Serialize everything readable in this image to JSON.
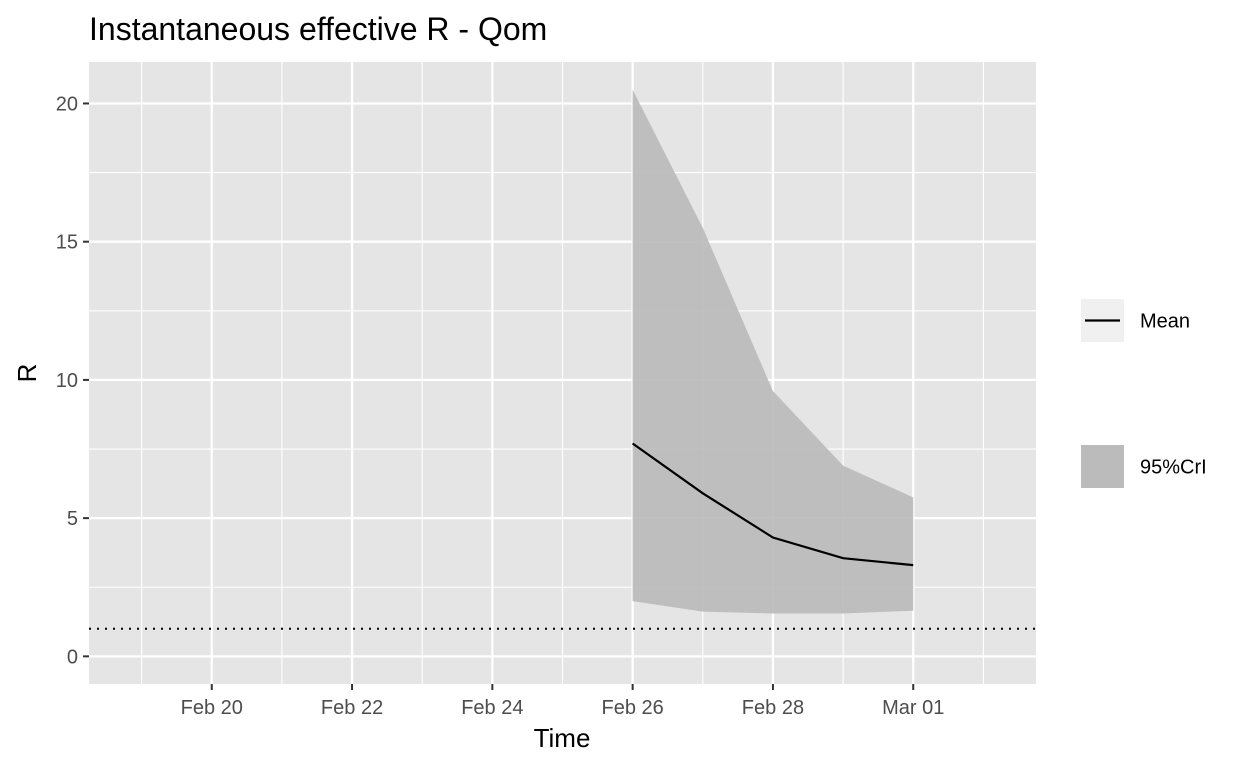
{
  "chart_data": {
    "type": "area",
    "title": "Instantaneous effective R -  Qom",
    "xlabel": "Time",
    "ylabel": "R",
    "xlim": [
      "2020-02-18 06:00",
      "2020-03-02 18:00"
    ],
    "ylim": [
      -1,
      21.5
    ],
    "x_ticks": [
      {
        "date": "2020-02-20",
        "label": "Feb 20"
      },
      {
        "date": "2020-02-22",
        "label": "Feb 22"
      },
      {
        "date": "2020-02-24",
        "label": "Feb 24"
      },
      {
        "date": "2020-02-26",
        "label": "Feb 26"
      },
      {
        "date": "2020-02-28",
        "label": "Feb 28"
      },
      {
        "date": "2020-03-01",
        "label": "Mar 01"
      }
    ],
    "x_minor_ticks": [
      "2020-02-19",
      "2020-02-21",
      "2020-02-23",
      "2020-02-25",
      "2020-02-27",
      "2020-02-29",
      "2020-03-02"
    ],
    "y_ticks": [
      {
        "value": 0,
        "label": "0"
      },
      {
        "value": 5,
        "label": "5"
      },
      {
        "value": 10,
        "label": "10"
      },
      {
        "value": 15,
        "label": "15"
      },
      {
        "value": 20,
        "label": "20"
      }
    ],
    "y_minor_ticks": [
      2.5,
      7.5,
      12.5,
      17.5
    ],
    "grid": true,
    "reference_line": {
      "y": 1,
      "style": "dotted"
    },
    "x": [
      "2020-02-26",
      "2020-02-27",
      "2020-02-28",
      "2020-02-29",
      "2020-03-01"
    ],
    "series": [
      {
        "name": "Mean",
        "values": [
          7.7,
          5.9,
          4.3,
          3.55,
          3.3
        ]
      }
    ],
    "band": {
      "name": "95%CrI",
      "lower": [
        2.0,
        1.62,
        1.55,
        1.55,
        1.65
      ],
      "upper": [
        20.5,
        15.5,
        9.6,
        6.9,
        5.75
      ]
    },
    "legend": {
      "position": "right",
      "items": [
        {
          "label": "Mean",
          "kind": "line"
        },
        {
          "label": "95%CrI",
          "kind": "fill"
        }
      ]
    },
    "colors": {
      "panel": "#e5e5e5",
      "grid": "#ffffff",
      "band": "#bbbbbb",
      "line": "#000000",
      "legend_key": "#f0f0f0"
    }
  }
}
